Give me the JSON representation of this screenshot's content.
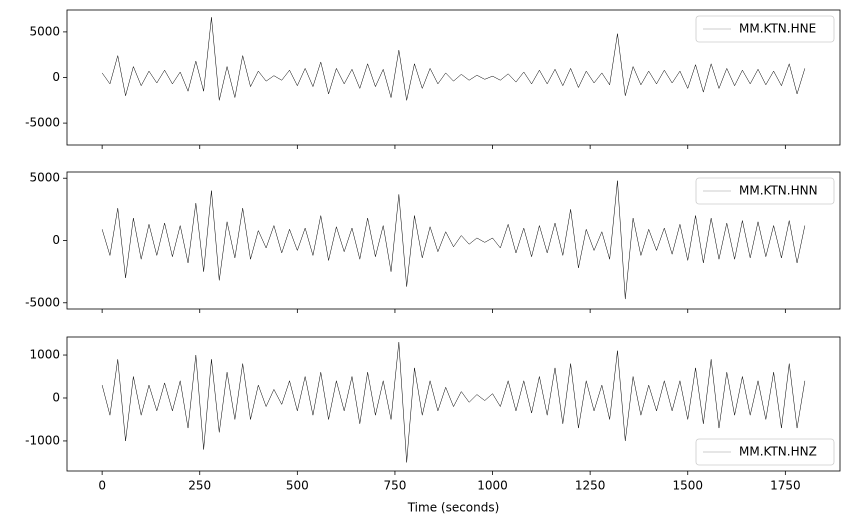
{
  "chart_data": [
    {
      "type": "line",
      "legend": "upper right",
      "x": [
        0,
        20,
        40,
        60,
        80,
        100,
        120,
        140,
        160,
        180,
        200,
        220,
        240,
        260,
        280,
        300,
        320,
        340,
        360,
        380,
        400,
        420,
        440,
        460,
        480,
        500,
        520,
        540,
        560,
        580,
        600,
        620,
        640,
        660,
        680,
        700,
        720,
        740,
        760,
        780,
        800,
        820,
        840,
        860,
        880,
        900,
        920,
        940,
        960,
        980,
        1000,
        1020,
        1040,
        1060,
        1080,
        1100,
        1120,
        1140,
        1160,
        1180,
        1200,
        1220,
        1240,
        1260,
        1280,
        1300,
        1320,
        1340,
        1360,
        1380,
        1400,
        1420,
        1440,
        1460,
        1480,
        1500,
        1520,
        1540,
        1560,
        1580,
        1600,
        1620,
        1640,
        1660,
        1680,
        1700,
        1720,
        1740,
        1760,
        1780,
        1800
      ],
      "series": [
        {
          "name": "MM.KTN.HNE",
          "color": "#000000",
          "values": [
            500,
            -700,
            2400,
            -2000,
            1200,
            -900,
            700,
            -600,
            800,
            -700,
            600,
            -1500,
            1800,
            -1500,
            6600,
            -2500,
            1200,
            -2200,
            2400,
            -1000,
            700,
            -400,
            200,
            -300,
            800,
            -900,
            1000,
            -1000,
            1700,
            -1800,
            1000,
            -700,
            900,
            -1200,
            1500,
            -1000,
            900,
            -2200,
            3000,
            -2500,
            1500,
            -1200,
            1000,
            -700,
            500,
            -400,
            350,
            -300,
            250,
            -200,
            150,
            -300,
            400,
            -500,
            600,
            -700,
            800,
            -700,
            900,
            -900,
            1000,
            -1100,
            700,
            -600,
            500,
            -800,
            4800,
            -2000,
            1200,
            -800,
            700,
            -700,
            800,
            -600,
            700,
            -1200,
            1400,
            -1600,
            1500,
            -1200,
            1000,
            -900,
            800,
            -700,
            900,
            -800,
            700,
            -900,
            1500,
            -1800,
            1000
          ]
        }
      ],
      "xlim": [
        -90,
        1890
      ],
      "xticks": [
        0,
        250,
        500,
        750,
        1000,
        1250,
        1500,
        1750
      ],
      "ylim": [
        -7400,
        7400
      ],
      "yticks": [
        -5000,
        0,
        5000
      ]
    },
    {
      "type": "line",
      "legend": "upper right",
      "x": [
        0,
        20,
        40,
        60,
        80,
        100,
        120,
        140,
        160,
        180,
        200,
        220,
        240,
        260,
        280,
        300,
        320,
        340,
        360,
        380,
        400,
        420,
        440,
        460,
        480,
        500,
        520,
        540,
        560,
        580,
        600,
        620,
        640,
        660,
        680,
        700,
        720,
        740,
        760,
        780,
        800,
        820,
        840,
        860,
        880,
        900,
        920,
        940,
        960,
        980,
        1000,
        1020,
        1040,
        1060,
        1080,
        1100,
        1120,
        1140,
        1160,
        1180,
        1200,
        1220,
        1240,
        1260,
        1280,
        1300,
        1320,
        1340,
        1360,
        1380,
        1400,
        1420,
        1440,
        1460,
        1480,
        1500,
        1520,
        1540,
        1560,
        1580,
        1600,
        1620,
        1640,
        1660,
        1680,
        1700,
        1720,
        1740,
        1760,
        1780,
        1800
      ],
      "series": [
        {
          "name": "MM.KTN.HNN",
          "color": "#000000",
          "values": [
            900,
            -1200,
            2600,
            -3000,
            1800,
            -1500,
            1300,
            -1200,
            1400,
            -1300,
            1200,
            -1800,
            3000,
            -2500,
            4000,
            -3200,
            1500,
            -1400,
            2600,
            -1500,
            800,
            -600,
            1200,
            -1000,
            900,
            -800,
            1000,
            -1200,
            2000,
            -1600,
            1100,
            -900,
            1000,
            -1500,
            1800,
            -1300,
            1200,
            -2500,
            3700,
            -3700,
            2000,
            -1400,
            1100,
            -900,
            700,
            -500,
            400,
            -300,
            200,
            -150,
            200,
            -600,
            1300,
            -1000,
            1000,
            -1300,
            1200,
            -1000,
            1400,
            -1200,
            2500,
            -2200,
            900,
            -800,
            700,
            -1500,
            4800,
            -4700,
            1800,
            -1200,
            900,
            -800,
            1000,
            -1100,
            1300,
            -1600,
            2000,
            -1800,
            1800,
            -1500,
            1400,
            -1500,
            1600,
            -1400,
            1500,
            -1300,
            1200,
            -1400,
            1600,
            -1800,
            1200
          ]
        }
      ],
      "xlim": [
        -90,
        1890
      ],
      "xticks": [
        0,
        250,
        500,
        750,
        1000,
        1250,
        1500,
        1750
      ],
      "ylim": [
        -5500,
        5500
      ],
      "yticks": [
        -5000,
        0,
        5000
      ]
    },
    {
      "type": "line",
      "legend": "lower right",
      "xlabel": "Time (seconds)",
      "x": [
        0,
        20,
        40,
        60,
        80,
        100,
        120,
        140,
        160,
        180,
        200,
        220,
        240,
        260,
        280,
        300,
        320,
        340,
        360,
        380,
        400,
        420,
        440,
        460,
        480,
        500,
        520,
        540,
        560,
        580,
        600,
        620,
        640,
        660,
        680,
        700,
        720,
        740,
        760,
        780,
        800,
        820,
        840,
        860,
        880,
        900,
        920,
        940,
        960,
        980,
        1000,
        1020,
        1040,
        1060,
        1080,
        1100,
        1120,
        1140,
        1160,
        1180,
        1200,
        1220,
        1240,
        1260,
        1280,
        1300,
        1320,
        1340,
        1360,
        1380,
        1400,
        1420,
        1440,
        1460,
        1480,
        1500,
        1520,
        1540,
        1560,
        1580,
        1600,
        1620,
        1640,
        1660,
        1680,
        1700,
        1720,
        1740,
        1760,
        1780,
        1800
      ],
      "series": [
        {
          "name": "MM.KTN.HNZ",
          "color": "#000000",
          "values": [
            300,
            -400,
            900,
            -1000,
            500,
            -400,
            300,
            -300,
            350,
            -300,
            400,
            -700,
            1000,
            -1200,
            900,
            -800,
            600,
            -500,
            800,
            -500,
            300,
            -200,
            200,
            -150,
            400,
            -300,
            500,
            -400,
            600,
            -500,
            400,
            -300,
            500,
            -600,
            600,
            -400,
            400,
            -500,
            1300,
            -1500,
            700,
            -400,
            400,
            -300,
            250,
            -200,
            150,
            -100,
            80,
            -60,
            100,
            -200,
            400,
            -300,
            400,
            -350,
            500,
            -400,
            700,
            -600,
            800,
            -700,
            400,
            -300,
            300,
            -500,
            1100,
            -1000,
            500,
            -400,
            300,
            -300,
            400,
            -300,
            400,
            -500,
            700,
            -600,
            900,
            -700,
            600,
            -400,
            500,
            -400,
            400,
            -500,
            600,
            -700,
            800,
            -700,
            400
          ]
        }
      ],
      "xlim": [
        -90,
        1890
      ],
      "xticks": [
        0,
        250,
        500,
        750,
        1000,
        1250,
        1500,
        1750
      ],
      "ylim": [
        -1700,
        1420
      ],
      "yticks": [
        -1000,
        0,
        1000
      ]
    }
  ]
}
